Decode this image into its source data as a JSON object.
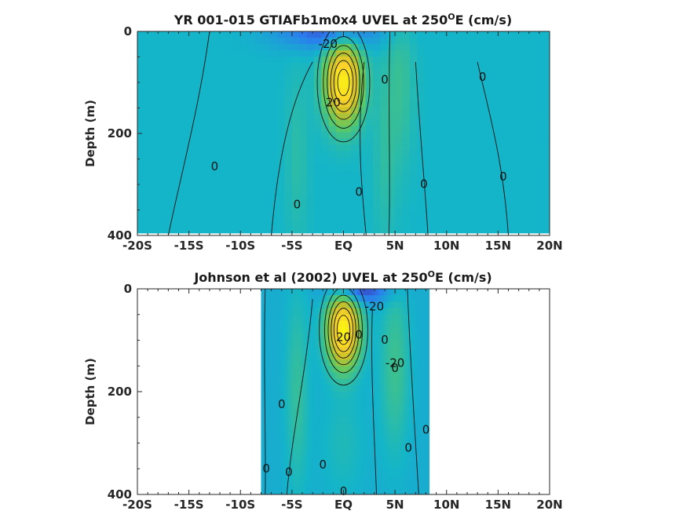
{
  "chart_data": [
    {
      "type": "heatmap",
      "name": "model",
      "title": "YR 001-015 GTIAFb1m0x4 UVEL at 250",
      "title_sup": "O",
      "title_end": "E (cm/s)",
      "ylabel": "Depth (m)",
      "xlabel": "",
      "xlim": [
        -20,
        20
      ],
      "ylim": [
        0,
        400
      ],
      "y_reversed": true,
      "x_ticks": [
        -20,
        -15,
        -10,
        -5,
        0,
        5,
        10,
        15,
        20
      ],
      "x_tick_labels": [
        "-20S",
        "-15S",
        "-10S",
        "-5S",
        "EQ",
        "5N",
        "10N",
        "15N",
        "20N"
      ],
      "y_ticks": [
        0,
        200,
        400
      ],
      "y_tick_labels": [
        "0",
        "200",
        "400"
      ],
      "data_extent": {
        "lon_min": -20,
        "lon_max": 20,
        "depth_min": 0,
        "depth_max": 395
      },
      "colormap": [
        "#3e26a8",
        "#2c7cef",
        "#14b5c9",
        "#5dc962",
        "#c7c029",
        "#fad12b",
        "#f9fb0e"
      ],
      "color_range": [
        -50,
        100
      ],
      "field": {
        "background": 0,
        "features": [
          {
            "kind": "jet",
            "lat": 0,
            "depth": 100,
            "sigma_lat": 1.2,
            "sigma_depth": 55,
            "amplitude": 95
          },
          {
            "kind": "surface_current",
            "lat": -1.5,
            "depth": 0,
            "sigma_lat": 3.5,
            "sigma_depth": 25,
            "amplitude": -35
          },
          {
            "kind": "nectc",
            "lat": 5.5,
            "depth": 100,
            "sigma_lat": 1.0,
            "sigma_depth": 120,
            "amplitude": 12
          },
          {
            "kind": "tsuchiya_south",
            "lat": -4.5,
            "depth": 250,
            "sigma_lat": 0.8,
            "sigma_depth": 130,
            "amplitude": 8
          },
          {
            "kind": "tsuchiya_north",
            "lat": 4,
            "depth": 250,
            "sigma_lat": 0.8,
            "sigma_depth": 130,
            "amplitude": 8
          }
        ]
      },
      "contour_labels": [
        {
          "text": "-20",
          "lat": -1.5,
          "depth": 25
        },
        {
          "text": "0",
          "lat": 4,
          "depth": 95
        },
        {
          "text": "0",
          "lat": 13.5,
          "depth": 90
        },
        {
          "text": "0",
          "lat": -12.5,
          "depth": 265
        },
        {
          "text": "0",
          "lat": 1.5,
          "depth": 315
        },
        {
          "text": "0",
          "lat": 7.8,
          "depth": 300
        },
        {
          "text": "0",
          "lat": 15.5,
          "depth": 285
        },
        {
          "text": "0",
          "lat": -4.5,
          "depth": 340
        },
        {
          "text": "20",
          "lat": -1,
          "depth": 140
        }
      ]
    },
    {
      "type": "heatmap",
      "name": "observations",
      "title": "Johnson et al (2002) UVEL at 250",
      "title_sup": "O",
      "title_end": "E (cm/s)",
      "ylabel": "Depth (m)",
      "xlabel": "",
      "xlim": [
        -20,
        20
      ],
      "ylim": [
        0,
        400
      ],
      "y_reversed": true,
      "x_ticks": [
        -20,
        -15,
        -10,
        -5,
        0,
        5,
        10,
        15,
        20
      ],
      "x_tick_labels": [
        "-20S",
        "-15S",
        "-10S",
        "-5S",
        "EQ",
        "5N",
        "10N",
        "15N",
        "20N"
      ],
      "y_ticks": [
        0,
        200,
        400
      ],
      "y_tick_labels": [
        "0",
        "200",
        "400"
      ],
      "data_extent": {
        "lon_min": -8,
        "lon_max": 8.3,
        "depth_min": 0,
        "depth_max": 400
      },
      "colormap": [
        "#3e26a8",
        "#2c7cef",
        "#14b5c9",
        "#5dc962",
        "#c7c029",
        "#fad12b",
        "#f9fb0e"
      ],
      "color_range": [
        -50,
        100
      ],
      "field": {
        "background": -4,
        "features": [
          {
            "kind": "jet",
            "lat": 0,
            "depth": 80,
            "sigma_lat": 1.1,
            "sigma_depth": 50,
            "amplitude": 100
          },
          {
            "kind": "surface_current",
            "lat": 1.5,
            "depth": 0,
            "sigma_lat": 2.0,
            "sigma_depth": 20,
            "amplitude": -40
          },
          {
            "kind": "nectc",
            "lat": 5,
            "depth": 150,
            "sigma_lat": 1.0,
            "sigma_depth": 120,
            "amplitude": 18
          },
          {
            "kind": "tsuchiya_south",
            "lat": -4.5,
            "depth": 200,
            "sigma_lat": 0.8,
            "sigma_depth": 140,
            "amplitude": 15
          },
          {
            "kind": "deep",
            "lat": 0,
            "depth": 300,
            "sigma_lat": 1.5,
            "sigma_depth": 80,
            "amplitude": 8
          }
        ]
      },
      "contour_labels": [
        {
          "text": "-20",
          "lat": 3,
          "depth": 35
        },
        {
          "text": "20",
          "lat": 0,
          "depth": 95
        },
        {
          "text": "0",
          "lat": 1.5,
          "depth": 90
        },
        {
          "text": "0",
          "lat": 4,
          "depth": 100
        },
        {
          "text": "-20",
          "lat": 5,
          "depth": 145
        },
        {
          "text": "0",
          "lat": 5,
          "depth": 155
        },
        {
          "text": "0",
          "lat": -6,
          "depth": 225
        },
        {
          "text": "0",
          "lat": 8,
          "depth": 275
        },
        {
          "text": "0",
          "lat": 6.3,
          "depth": 310
        },
        {
          "text": "0",
          "lat": -7.5,
          "depth": 350
        },
        {
          "text": "0",
          "lat": -5.3,
          "depth": 357
        },
        {
          "text": "0",
          "lat": -2,
          "depth": 343
        },
        {
          "text": "0",
          "lat": 0,
          "depth": 395
        }
      ]
    }
  ]
}
